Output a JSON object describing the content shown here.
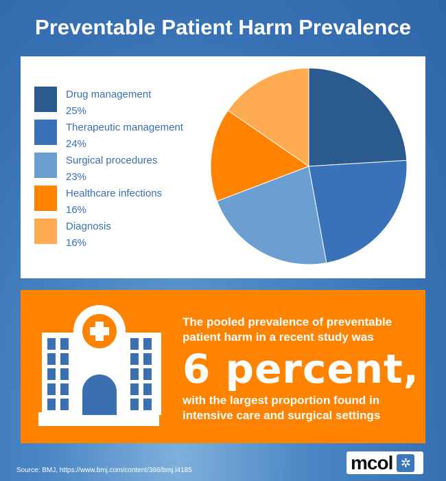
{
  "title": "Preventable Patient Harm Prevalence",
  "chart_data": {
    "type": "pie",
    "title": "Preventable Patient Harm Prevalence",
    "legend_position": "left",
    "start": "top, clockwise",
    "slices": [
      {
        "name": "Drug management",
        "value": 25,
        "label": "25%",
        "color": "#2b5a8e"
      },
      {
        "name": "Therapeutic management",
        "value": 24,
        "label": "24%",
        "color": "#3a72b9"
      },
      {
        "name": "Surgical procedures",
        "value": 23,
        "label": "23%",
        "color": "#6b9fd1"
      },
      {
        "name": "Healthcare infections",
        "value": 16,
        "label": "16%",
        "color": "#ff8200"
      },
      {
        "name": "Diagnosis",
        "value": 16,
        "label": "16%",
        "color": "#ffab52"
      }
    ]
  },
  "info": {
    "line1": "The pooled prevalence of preventable",
    "line2": "patient harm in a recent study was",
    "big": "6 percent,",
    "line3": "with the largest proportion found in",
    "line4": "intensive care and surgical settings",
    "icon": "hospital-icon"
  },
  "source": "Source: BMJ, https://www.bmj.com/content/366/bmj.l4185",
  "logo": "mcol"
}
